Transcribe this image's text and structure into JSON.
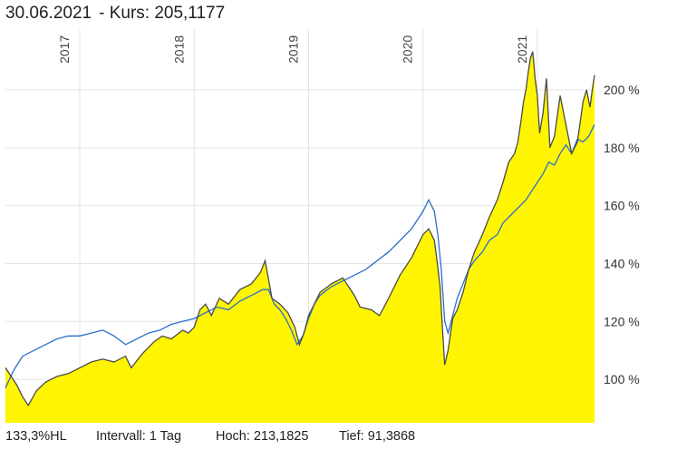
{
  "header": {
    "date": "30.06.2021",
    "price_label": "- Kurs: 205,1177"
  },
  "footer": {
    "item1": "133,3%HL",
    "item2": "Intervall: 1 Tag",
    "item3": "Hoch: 213,1825",
    "item4": "Tief: 91,3868"
  },
  "colors": {
    "area_fill": "#fff500",
    "main_line": "#4a4a4a",
    "benchmark_line": "#2a70c8",
    "grid": "#e4e4e4"
  },
  "chart_data": {
    "type": "area",
    "title": "30.06.2021 - Kurs: 205,1177",
    "y_tick_values": [
      100,
      120,
      140,
      160,
      180,
      200
    ],
    "y_tick_labels": [
      "100 %",
      "120 %",
      "140 %",
      "160 %",
      "180 %",
      "200 %"
    ],
    "ylim": [
      85,
      221
    ],
    "xlim": [
      2016.35,
      2021.5
    ],
    "x_tick_values": [
      2017,
      2018,
      2019,
      2020,
      2021
    ],
    "x_tick_labels": [
      "2017",
      "2018",
      "2019",
      "2020",
      "2021"
    ],
    "grid": true,
    "legend": "none",
    "series": [
      {
        "role": "price",
        "x": [
          2016.35,
          2016.4,
          2016.45,
          2016.5,
          2016.55,
          2016.62,
          2016.7,
          2016.8,
          2016.9,
          2017.0,
          2017.1,
          2017.2,
          2017.3,
          2017.4,
          2017.45,
          2017.55,
          2017.65,
          2017.72,
          2017.8,
          2017.9,
          2017.95,
          2018.0,
          2018.05,
          2018.1,
          2018.15,
          2018.22,
          2018.3,
          2018.4,
          2018.5,
          2018.58,
          2018.62,
          2018.68,
          2018.75,
          2018.82,
          2018.88,
          2018.92,
          2018.96,
          2019.0,
          2019.05,
          2019.1,
          2019.2,
          2019.3,
          2019.4,
          2019.45,
          2019.55,
          2019.62,
          2019.7,
          2019.8,
          2019.9,
          2020.0,
          2020.05,
          2020.1,
          2020.12,
          2020.15,
          2020.17,
          2020.19,
          2020.22,
          2020.26,
          2020.3,
          2020.35,
          2020.4,
          2020.45,
          2020.52,
          2020.58,
          2020.65,
          2020.7,
          2020.75,
          2020.8,
          2020.83,
          2020.86,
          2020.88,
          2020.9,
          2020.92,
          2020.94,
          2020.96,
          2020.97,
          2020.98,
          2021.0,
          2021.02,
          2021.05,
          2021.08,
          2021.11,
          2021.15,
          2021.2,
          2021.25,
          2021.3,
          2021.35,
          2021.4,
          2021.43,
          2021.46,
          2021.48,
          2021.5
        ],
        "y": [
          104,
          101,
          98,
          94,
          91,
          96,
          99,
          101,
          102,
          104,
          106,
          107,
          106,
          108,
          104,
          109,
          113,
          115,
          114,
          117,
          116,
          118,
          124,
          126,
          122,
          128,
          126,
          131,
          133,
          137,
          141,
          128,
          126,
          123,
          118,
          112,
          116,
          122,
          126,
          130,
          133,
          135,
          129,
          125,
          124,
          122,
          128,
          136,
          142,
          150,
          152,
          148,
          142,
          132,
          118,
          105,
          110,
          121,
          124,
          130,
          138,
          144,
          150,
          156,
          162,
          168,
          175,
          178,
          182,
          190,
          196,
          200,
          206,
          211,
          213.2,
          209,
          204,
          198,
          185,
          192,
          204,
          180,
          184,
          198,
          188,
          178,
          182,
          196,
          200,
          194,
          200,
          205.1
        ]
      },
      {
        "role": "benchmark",
        "x": [
          2016.35,
          2016.42,
          2016.5,
          2016.6,
          2016.7,
          2016.8,
          2016.9,
          2017.0,
          2017.1,
          2017.2,
          2017.3,
          2017.4,
          2017.5,
          2017.6,
          2017.7,
          2017.8,
          2017.9,
          2018.0,
          2018.1,
          2018.2,
          2018.3,
          2018.4,
          2018.5,
          2018.6,
          2018.65,
          2018.7,
          2018.75,
          2018.8,
          2018.85,
          2018.9,
          2018.95,
          2019.0,
          2019.05,
          2019.1,
          2019.2,
          2019.3,
          2019.4,
          2019.5,
          2019.6,
          2019.7,
          2019.8,
          2019.9,
          2020.0,
          2020.05,
          2020.1,
          2020.13,
          2020.16,
          2020.19,
          2020.22,
          2020.26,
          2020.3,
          2020.35,
          2020.4,
          2020.45,
          2020.52,
          2020.58,
          2020.65,
          2020.7,
          2020.75,
          2020.8,
          2020.85,
          2020.9,
          2020.95,
          2021.0,
          2021.05,
          2021.1,
          2021.15,
          2021.2,
          2021.25,
          2021.3,
          2021.35,
          2021.4,
          2021.45,
          2021.5
        ],
        "y": [
          97,
          103,
          108,
          110,
          112,
          114,
          115,
          115,
          116,
          117,
          115,
          112,
          114,
          116,
          117,
          119,
          120,
          121,
          123,
          125,
          124,
          127,
          129,
          131,
          131,
          126,
          124,
          121,
          117,
          112,
          115,
          121,
          126,
          129,
          132,
          134,
          136,
          138,
          141,
          144,
          148,
          152,
          158,
          162,
          158,
          150,
          138,
          120,
          116,
          122,
          128,
          133,
          138,
          141,
          144,
          148,
          150,
          154,
          156,
          158,
          160,
          162,
          165,
          168,
          171,
          175,
          174,
          178,
          181,
          178,
          183,
          182,
          184,
          188
        ]
      }
    ]
  }
}
